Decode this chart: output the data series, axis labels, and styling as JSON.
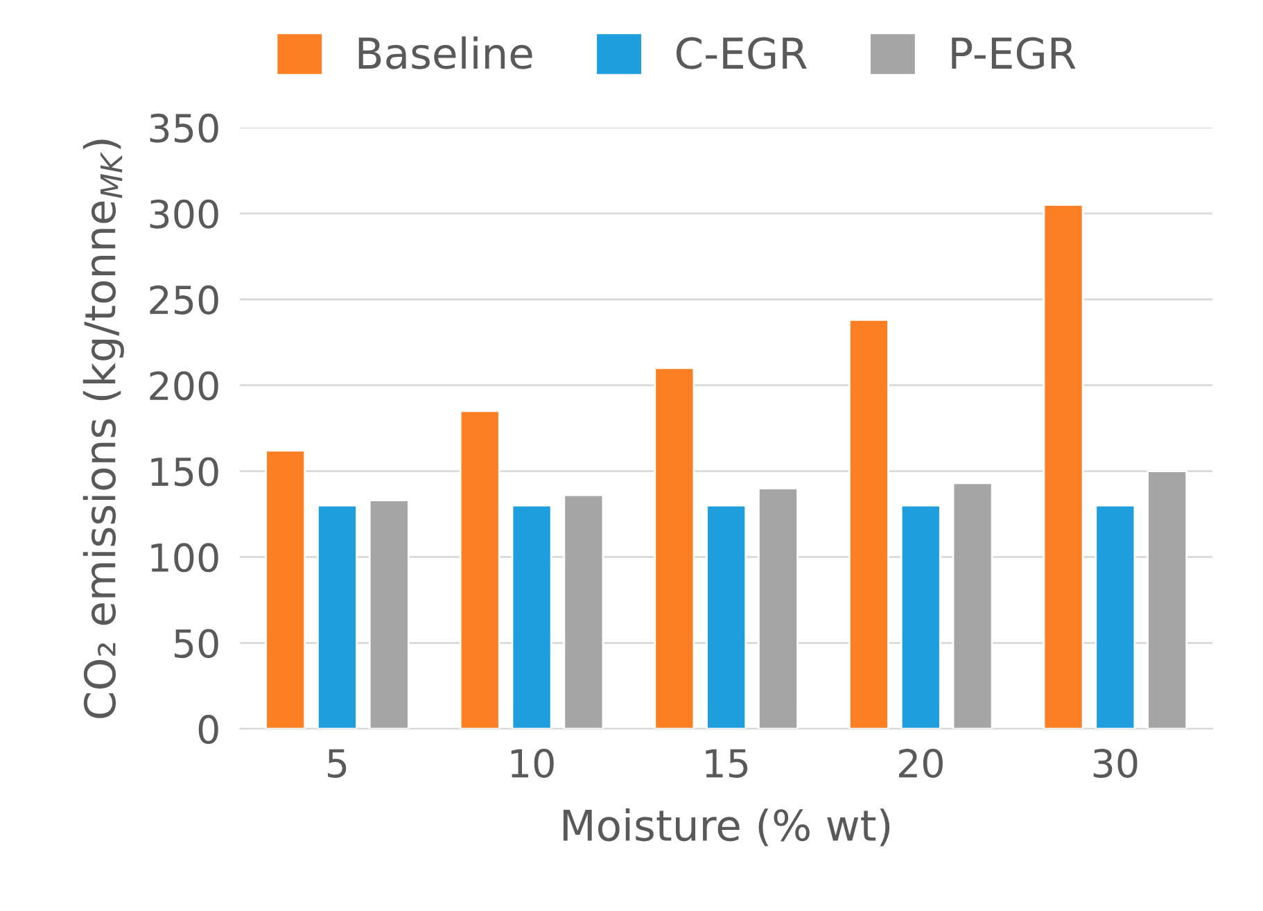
{
  "chart_data": {
    "type": "bar",
    "xlabel": "Moisture (% wt)",
    "ylabel": "CO₂ emissions (kg/tonne$_{MK}$)",
    "categories": [
      "5",
      "10",
      "15",
      "20",
      "30"
    ],
    "series": [
      {
        "name": "Baseline",
        "color": "#fd7f23",
        "values": [
          162,
          185,
          210,
          238,
          305
        ]
      },
      {
        "name": "C-EGR",
        "color": "#1f9edd",
        "values": [
          130,
          130,
          130,
          130,
          130
        ]
      },
      {
        "name": "P-EGR",
        "color": "#a5a5a5",
        "values": [
          133,
          136,
          140,
          143,
          150
        ]
      }
    ],
    "ylim": [
      0,
      350
    ],
    "yticks": [
      0,
      50,
      100,
      150,
      200,
      250,
      300,
      350
    ],
    "grid": "y",
    "legend": "top"
  }
}
